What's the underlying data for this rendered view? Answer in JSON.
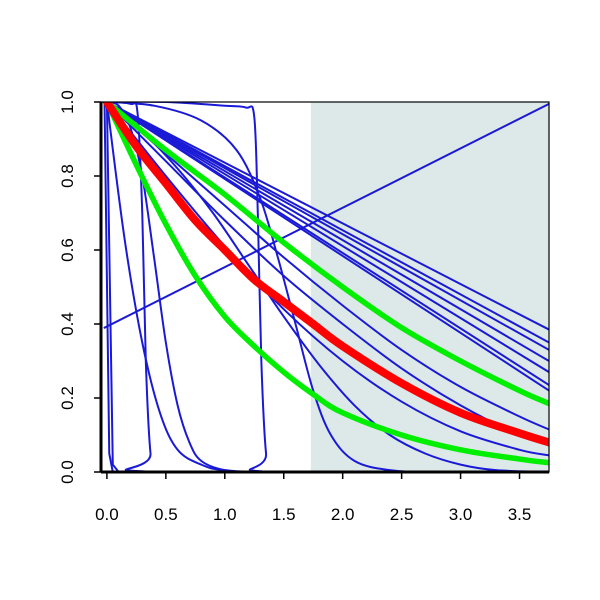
{
  "chart_data": {
    "type": "line",
    "title": "",
    "xlabel": "",
    "ylabel": "",
    "xlim": [
      -0.05,
      3.75
    ],
    "ylim": [
      0,
      1
    ],
    "x_ticks": [
      0.0,
      0.5,
      1.0,
      1.5,
      2.0,
      2.5,
      3.0,
      3.5
    ],
    "x_tick_labels": [
      "0.0",
      "0.5",
      "1.0",
      "1.5",
      "2.0",
      "2.5",
      "3.0",
      "3.5"
    ],
    "y_ticks": [
      0.0,
      0.2,
      0.4,
      0.6,
      0.8,
      1.0
    ],
    "y_tick_labels": [
      "0.0",
      "0.2",
      "0.4",
      "0.6",
      "0.8",
      "1.0"
    ],
    "grid": false,
    "legend": "none",
    "shaded_region": {
      "x_from": 1.73,
      "x_to": 3.75,
      "color": "#dde9e9"
    },
    "colors": {
      "blue": "#1a1ad6",
      "red": "#ff0000",
      "green": "#00ee00",
      "shade": "#dde9e9"
    },
    "series": [
      {
        "color": "blue",
        "kind": "step",
        "points": [
          [
            -0.05,
            1
          ],
          [
            -0.02,
            1
          ],
          [
            0.02,
            0.05
          ],
          [
            0.05,
            0
          ],
          [
            3.75,
            0
          ]
        ]
      },
      {
        "color": "blue",
        "kind": "step",
        "points": [
          [
            -0.05,
            1
          ],
          [
            0.0,
            1
          ],
          [
            0.05,
            0.02
          ],
          [
            0.1,
            0
          ],
          [
            3.75,
            0
          ]
        ]
      },
      {
        "color": "blue",
        "kind": "line",
        "points": [
          [
            -0.02,
            0.39
          ],
          [
            3.75,
            0.995
          ]
        ]
      },
      {
        "color": "blue",
        "kind": "curve",
        "points": [
          [
            0.0,
            1
          ],
          [
            0.15,
            0.63
          ],
          [
            0.3,
            0.35
          ],
          [
            0.45,
            0.16
          ],
          [
            0.6,
            0.06
          ],
          [
            0.8,
            0.02
          ],
          [
            1.0,
            0.005
          ],
          [
            1.5,
            0
          ],
          [
            3.75,
            0
          ]
        ]
      },
      {
        "color": "blue",
        "kind": "curve",
        "points": [
          [
            0.0,
            1
          ],
          [
            0.1,
            0.99
          ],
          [
            0.2,
            0.93
          ],
          [
            0.3,
            0.8
          ],
          [
            0.4,
            0.58
          ],
          [
            0.5,
            0.35
          ],
          [
            0.6,
            0.18
          ],
          [
            0.7,
            0.08
          ],
          [
            0.8,
            0.03
          ],
          [
            1.0,
            0.005
          ],
          [
            1.3,
            0
          ],
          [
            3.75,
            0
          ]
        ]
      },
      {
        "color": "blue",
        "kind": "curve",
        "points": [
          [
            0.0,
            1
          ],
          [
            0.2,
            0.995
          ],
          [
            0.26,
            0.97
          ],
          [
            0.3,
            0.7
          ],
          [
            0.33,
            0.3
          ],
          [
            0.37,
            0.05
          ],
          [
            0.42,
            0
          ],
          [
            3.75,
            0
          ]
        ]
      },
      {
        "color": "blue",
        "kind": "curve",
        "points": [
          [
            0.0,
            1
          ],
          [
            0.5,
            1
          ],
          [
            1.0,
            0.99
          ],
          [
            1.18,
            0.985
          ],
          [
            1.25,
            0.96
          ],
          [
            1.28,
            0.7
          ],
          [
            1.31,
            0.3
          ],
          [
            1.35,
            0.05
          ],
          [
            1.4,
            0
          ],
          [
            3.75,
            0
          ]
        ]
      },
      {
        "color": "blue",
        "kind": "curve",
        "points": [
          [
            0.0,
            1
          ],
          [
            0.4,
            0.99
          ],
          [
            0.8,
            0.95
          ],
          [
            1.1,
            0.87
          ],
          [
            1.3,
            0.74
          ],
          [
            1.45,
            0.58
          ],
          [
            1.6,
            0.4
          ],
          [
            1.75,
            0.22
          ],
          [
            1.9,
            0.1
          ],
          [
            2.1,
            0.03
          ],
          [
            2.4,
            0.005
          ],
          [
            2.8,
            0
          ],
          [
            3.75,
            0
          ]
        ]
      },
      {
        "color": "blue",
        "kind": "curve",
        "points": [
          [
            0.0,
            1
          ],
          [
            0.3,
            0.92
          ],
          [
            0.6,
            0.82
          ],
          [
            0.9,
            0.7
          ],
          [
            1.2,
            0.56
          ],
          [
            1.5,
            0.42
          ],
          [
            1.8,
            0.29
          ],
          [
            2.1,
            0.18
          ],
          [
            2.4,
            0.1
          ],
          [
            2.7,
            0.05
          ],
          [
            3.0,
            0.02
          ],
          [
            3.3,
            0.005
          ],
          [
            3.75,
            0
          ]
        ]
      },
      {
        "color": "blue",
        "kind": "line",
        "points": [
          [
            0,
            1
          ],
          [
            3.75,
            0.385
          ]
        ]
      },
      {
        "color": "blue",
        "kind": "line",
        "points": [
          [
            0,
            1
          ],
          [
            3.75,
            0.35
          ]
        ]
      },
      {
        "color": "blue",
        "kind": "line",
        "points": [
          [
            0,
            1
          ],
          [
            3.75,
            0.33
          ]
        ]
      },
      {
        "color": "blue",
        "kind": "line",
        "points": [
          [
            0,
            1
          ],
          [
            3.75,
            0.3
          ]
        ]
      },
      {
        "color": "blue",
        "kind": "line",
        "points": [
          [
            0,
            1
          ],
          [
            3.75,
            0.27
          ]
        ]
      },
      {
        "color": "blue",
        "kind": "line",
        "points": [
          [
            0,
            1
          ],
          [
            3.75,
            0.235
          ]
        ]
      },
      {
        "color": "blue",
        "kind": "line",
        "points": [
          [
            0,
            1
          ],
          [
            3.75,
            0.22
          ]
        ]
      },
      {
        "color": "blue",
        "kind": "curve",
        "points": [
          [
            0,
            1
          ],
          [
            0.5,
            0.86
          ],
          [
            1.0,
            0.72
          ],
          [
            1.5,
            0.58
          ],
          [
            2.0,
            0.45
          ],
          [
            2.5,
            0.33
          ],
          [
            3.0,
            0.23
          ],
          [
            3.5,
            0.15
          ],
          [
            3.75,
            0.115
          ]
        ]
      },
      {
        "color": "blue",
        "kind": "curve",
        "points": [
          [
            0,
            1
          ],
          [
            0.5,
            0.84
          ],
          [
            1.0,
            0.68
          ],
          [
            1.5,
            0.53
          ],
          [
            2.0,
            0.4
          ],
          [
            2.5,
            0.28
          ],
          [
            3.0,
            0.18
          ],
          [
            3.5,
            0.1
          ],
          [
            3.75,
            0.075
          ]
        ]
      },
      {
        "color": "blue",
        "kind": "curve",
        "points": [
          [
            0,
            1
          ],
          [
            0.5,
            0.8
          ],
          [
            1.0,
            0.61
          ],
          [
            1.5,
            0.44
          ],
          [
            2.0,
            0.3
          ],
          [
            2.5,
            0.19
          ],
          [
            3.0,
            0.11
          ],
          [
            3.5,
            0.06
          ],
          [
            3.75,
            0.045
          ]
        ]
      },
      {
        "color": "green",
        "kind": "curve",
        "width": 5.5,
        "points": [
          [
            0,
            1
          ],
          [
            0.5,
            0.87
          ],
          [
            1.0,
            0.75
          ],
          [
            1.5,
            0.62
          ],
          [
            2.0,
            0.5
          ],
          [
            2.5,
            0.39
          ],
          [
            3.0,
            0.3
          ],
          [
            3.5,
            0.22
          ],
          [
            3.75,
            0.185
          ]
        ]
      },
      {
        "color": "green",
        "kind": "curve",
        "width": 5.5,
        "points": [
          [
            0,
            1
          ],
          [
            0.25,
            0.83
          ],
          [
            0.5,
            0.67
          ],
          [
            0.75,
            0.53
          ],
          [
            1.0,
            0.42
          ],
          [
            1.25,
            0.34
          ],
          [
            1.5,
            0.27
          ],
          [
            1.75,
            0.21
          ],
          [
            2.0,
            0.16
          ],
          [
            2.5,
            0.1
          ],
          [
            3.0,
            0.06
          ],
          [
            3.5,
            0.035
          ],
          [
            3.75,
            0.025
          ]
        ]
      },
      {
        "color": "red",
        "kind": "curve",
        "width": 8,
        "points": [
          [
            0,
            1
          ],
          [
            0.25,
            0.88
          ],
          [
            0.5,
            0.78
          ],
          [
            0.75,
            0.68
          ],
          [
            1.0,
            0.6
          ],
          [
            1.25,
            0.52
          ],
          [
            1.5,
            0.46
          ],
          [
            1.75,
            0.4
          ],
          [
            2.0,
            0.34
          ],
          [
            2.5,
            0.24
          ],
          [
            3.0,
            0.16
          ],
          [
            3.5,
            0.105
          ],
          [
            3.75,
            0.08
          ]
        ]
      }
    ]
  }
}
